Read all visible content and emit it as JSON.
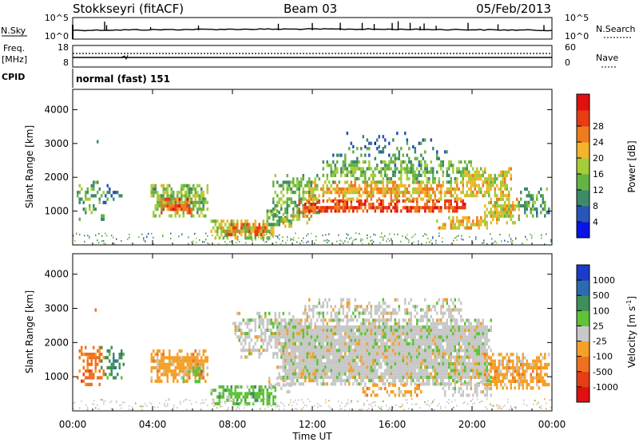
{
  "header": {
    "station": "Stokkseyri (fitACF)",
    "beam": "Beam 03",
    "date": "05/Feb/2013"
  },
  "nsky_panel": {
    "left_label": "N.Sky",
    "left_ticks": [
      "10^5",
      "10^0"
    ],
    "right_label": "N.Search",
    "right_ticks": [
      "10^5",
      "10^0"
    ]
  },
  "freq_panel": {
    "left_label_1": "Freq.",
    "left_label_2": "[MHz]",
    "left_ticks": [
      "18",
      "8"
    ],
    "right_label": "Nave",
    "right_ticks": [
      "60",
      "0"
    ]
  },
  "cpid": {
    "label": "CPID",
    "mode": "normal (fast) 151"
  },
  "time_axis": {
    "xlabel": "Time UT",
    "ticks": [
      "00:00",
      "04:00",
      "08:00",
      "12:00",
      "16:00",
      "20:00",
      "00:00"
    ]
  },
  "power_panel": {
    "ylabel": "Slant Range [km]",
    "yticks": [
      "1000",
      "2000",
      "3000",
      "4000"
    ],
    "cbar_label": "Power [dB]",
    "cbar_ticks": [
      "4",
      "8",
      "12",
      "16",
      "20",
      "24",
      "28"
    ],
    "cbar_colors": [
      "#0a14e6",
      "#2855b8",
      "#3f8a6b",
      "#64b444",
      "#a5cd3a",
      "#f5b52a",
      "#f07a1e",
      "#e83c14",
      "#e01010"
    ]
  },
  "velocity_panel": {
    "ylabel": "Slant Range [km]",
    "yticks": [
      "1000",
      "2000",
      "3000",
      "4000"
    ],
    "cbar_label": "Velocity [m s",
    "cbar_label_sup": "-1",
    "cbar_label_end": "]",
    "cbar_ticks": [
      "1000",
      "500",
      "100",
      "25",
      "-25",
      "-100",
      "-500",
      "-1000"
    ],
    "cbar_colors": [
      "#1a3cc8",
      "#2d6bb0",
      "#3f8f5a",
      "#5fc23a",
      "#c8c8c8",
      "#f5a028",
      "#f07020",
      "#e83c14",
      "#e01010"
    ]
  },
  "chart_data": [
    {
      "type": "heatmap",
      "title": "Power",
      "xlabel": "Time UT",
      "ylabel": "Slant Range [km]",
      "xlim": [
        0,
        24
      ],
      "ylim": [
        0,
        4600
      ],
      "zlabel": "Power [dB]",
      "zlim": [
        0,
        32
      ],
      "regions": [
        {
          "t0": 0.2,
          "t1": 1.6,
          "r0": 800,
          "r1": 1900,
          "level": 11,
          "density": 0.45
        },
        {
          "t0": 1.5,
          "t1": 2.6,
          "r0": 1300,
          "r1": 1800,
          "level": 8,
          "density": 0.3
        },
        {
          "t0": 0.9,
          "t1": 1.5,
          "r0": 2700,
          "r1": 3200,
          "level": 6,
          "density": 0.12
        },
        {
          "t0": 3.9,
          "t1": 6.8,
          "r0": 900,
          "r1": 1800,
          "level": 14,
          "density": 0.8
        },
        {
          "t0": 4.4,
          "t1": 6.0,
          "r0": 950,
          "r1": 1400,
          "level": 26,
          "density": 0.95
        },
        {
          "t0": 6.9,
          "t1": 10.2,
          "r0": 250,
          "r1": 750,
          "level": 16,
          "density": 0.85
        },
        {
          "t0": 7.4,
          "t1": 9.7,
          "r0": 350,
          "r1": 650,
          "level": 25,
          "density": 0.9
        },
        {
          "t0": 9.7,
          "t1": 11.0,
          "r0": 600,
          "r1": 1050,
          "level": 12,
          "density": 0.7
        },
        {
          "t0": 10.0,
          "t1": 12.3,
          "r0": 800,
          "r1": 2100,
          "level": 12,
          "density": 0.55
        },
        {
          "t0": 11.2,
          "t1": 19.7,
          "r0": 1000,
          "r1": 1350,
          "level": 27,
          "density": 0.95
        },
        {
          "t0": 11.8,
          "t1": 19.5,
          "r0": 1400,
          "r1": 1900,
          "level": 21,
          "density": 0.85
        },
        {
          "t0": 12.5,
          "t1": 20.0,
          "r0": 1900,
          "r1": 2500,
          "level": 13,
          "density": 0.6
        },
        {
          "t0": 13.0,
          "t1": 18.8,
          "r0": 2400,
          "r1": 2900,
          "level": 9,
          "density": 0.3
        },
        {
          "t0": 13.5,
          "t1": 18.0,
          "r0": 2900,
          "r1": 3350,
          "level": 6,
          "density": 0.12
        },
        {
          "t0": 10.5,
          "t1": 12.0,
          "r0": 600,
          "r1": 900,
          "level": 20,
          "density": 0.6
        },
        {
          "t0": 19.5,
          "t1": 22.0,
          "r0": 1500,
          "r1": 2300,
          "level": 18,
          "density": 0.75
        },
        {
          "t0": 18.2,
          "t1": 20.8,
          "r0": 500,
          "r1": 850,
          "level": 20,
          "density": 0.8
        },
        {
          "t0": 20.6,
          "t1": 22.4,
          "r0": 700,
          "r1": 1400,
          "level": 18,
          "density": 0.75
        },
        {
          "t0": 22.3,
          "t1": 23.9,
          "r0": 900,
          "r1": 1700,
          "level": 10,
          "density": 0.6
        }
      ]
    },
    {
      "type": "heatmap",
      "title": "Velocity",
      "xlabel": "Time UT",
      "ylabel": "Slant Range [km]",
      "xlim": [
        0,
        24
      ],
      "ylim": [
        0,
        4600
      ],
      "zlabel": "Velocity [m s-1]",
      "zlim": [
        -1000,
        1000
      ],
      "regions": [
        {
          "t0": 0.2,
          "t1": 1.6,
          "r0": 800,
          "r1": 1900,
          "band": 6,
          "density": 0.55
        },
        {
          "t0": 1.4,
          "t1": 2.6,
          "r0": 1000,
          "r1": 1900,
          "band": 2,
          "density": 0.45
        },
        {
          "t0": 1.0,
          "t1": 1.4,
          "r0": 2700,
          "r1": 3100,
          "band": 5,
          "density": 0.15
        },
        {
          "t0": 3.9,
          "t1": 6.8,
          "r0": 900,
          "r1": 1800,
          "band": 5,
          "density": 0.85
        },
        {
          "t0": 5.5,
          "t1": 6.5,
          "r0": 900,
          "r1": 1300,
          "band": 3,
          "density": 0.7
        },
        {
          "t0": 6.9,
          "t1": 10.2,
          "r0": 250,
          "r1": 750,
          "band": 3,
          "density": 0.85
        },
        {
          "t0": 9.7,
          "t1": 11.0,
          "r0": 600,
          "r1": 1000,
          "band": 4,
          "density": 0.6
        },
        {
          "t0": 8.0,
          "t1": 12.0,
          "r0": 1600,
          "r1": 2900,
          "band": 4,
          "density": 0.55
        },
        {
          "t0": 10.2,
          "t1": 21.0,
          "r0": 800,
          "r1": 2700,
          "band": 4,
          "density": 0.95
        },
        {
          "t0": 11.5,
          "t1": 19.5,
          "r0": 2700,
          "r1": 3300,
          "band": 4,
          "density": 0.5
        },
        {
          "t0": 14.5,
          "t1": 17.5,
          "r0": 500,
          "r1": 800,
          "band": 5,
          "density": 0.6
        },
        {
          "t0": 18.5,
          "t1": 21.0,
          "r0": 500,
          "r1": 900,
          "band": 4,
          "density": 0.7
        },
        {
          "t0": 20.6,
          "t1": 23.9,
          "r0": 700,
          "r1": 1700,
          "band": 5,
          "density": 0.75
        }
      ]
    }
  ]
}
